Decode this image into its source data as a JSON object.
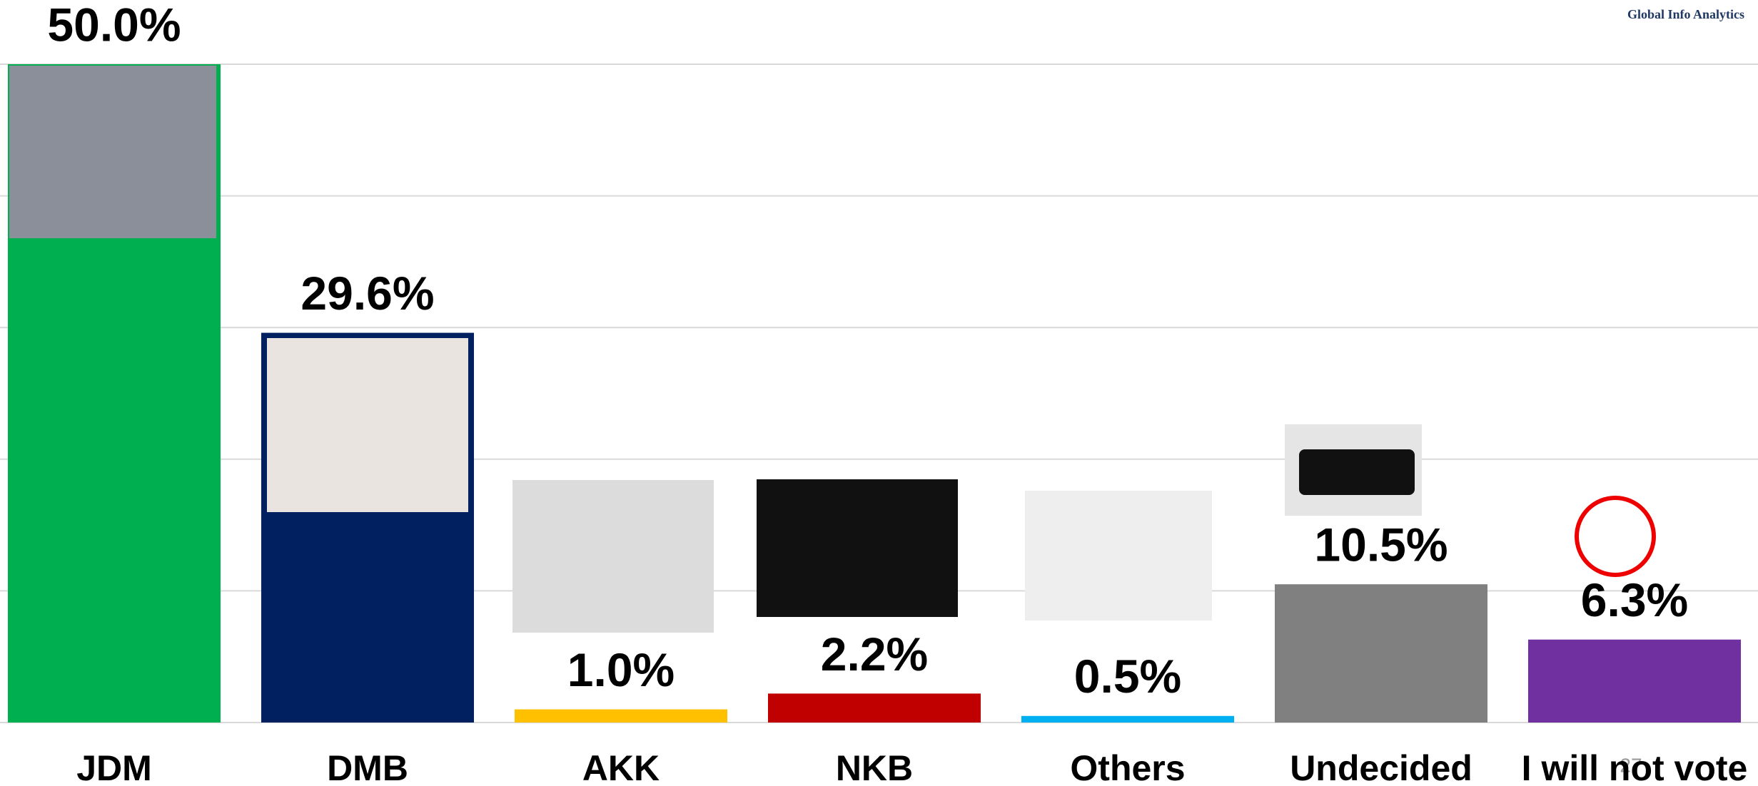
{
  "chart_data": {
    "type": "bar",
    "categories": [
      "JDM",
      "DMB",
      "AKK",
      "NKB",
      "Others",
      "Undecided",
      "I will not vote"
    ],
    "values": [
      50.0,
      29.6,
      1.0,
      2.2,
      0.5,
      10.5,
      6.3
    ],
    "value_labels": [
      "50.0%",
      "29.6%",
      "1.0%",
      "2.2%",
      "0.5%",
      "10.5%",
      "6.3%"
    ],
    "colors": [
      "#00b050",
      "#002060",
      "#ffc000",
      "#c00000",
      "#00b0f0",
      "#808080",
      "#7030a0"
    ],
    "ylim": [
      0,
      50
    ],
    "yticks": [
      0,
      10,
      20,
      30,
      40,
      50
    ],
    "grid": true,
    "logo": "Global Info Analytics",
    "page_number": "27"
  }
}
